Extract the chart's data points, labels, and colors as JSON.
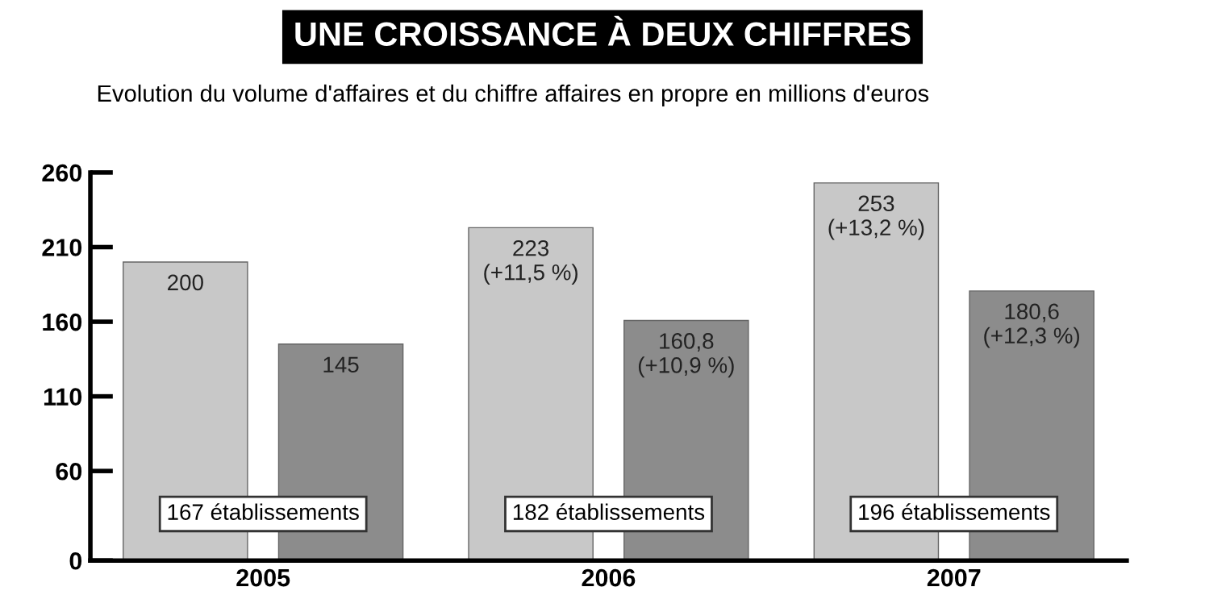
{
  "chart_data": {
    "type": "bar",
    "title": "UNE CROISSANCE À DEUX CHIFFRES",
    "subtitle": "Evolution du volume d'affaires et du chiffre affaires en propre en millions d'euros",
    "categories": [
      "2005",
      "2006",
      "2007"
    ],
    "series": [
      {
        "color": "#c8c8c8",
        "values": [
          200,
          223,
          253
        ],
        "value_labels": [
          "200",
          "223\n(+11,5 %)",
          "253\n(+13,2 %)"
        ]
      },
      {
        "color": "#8c8c8c",
        "values": [
          145,
          160.8,
          180.6
        ],
        "value_labels": [
          "145",
          "160,8\n(+10,9 %)",
          "180,6\n(+12,3 %)"
        ]
      }
    ],
    "annotations": [
      "167 établissements",
      "182 établissements",
      "196 établissements"
    ],
    "ylim": [
      0,
      260
    ],
    "yticks": [
      0,
      60,
      110,
      160,
      210,
      260
    ],
    "grid": false,
    "legend": false
  }
}
